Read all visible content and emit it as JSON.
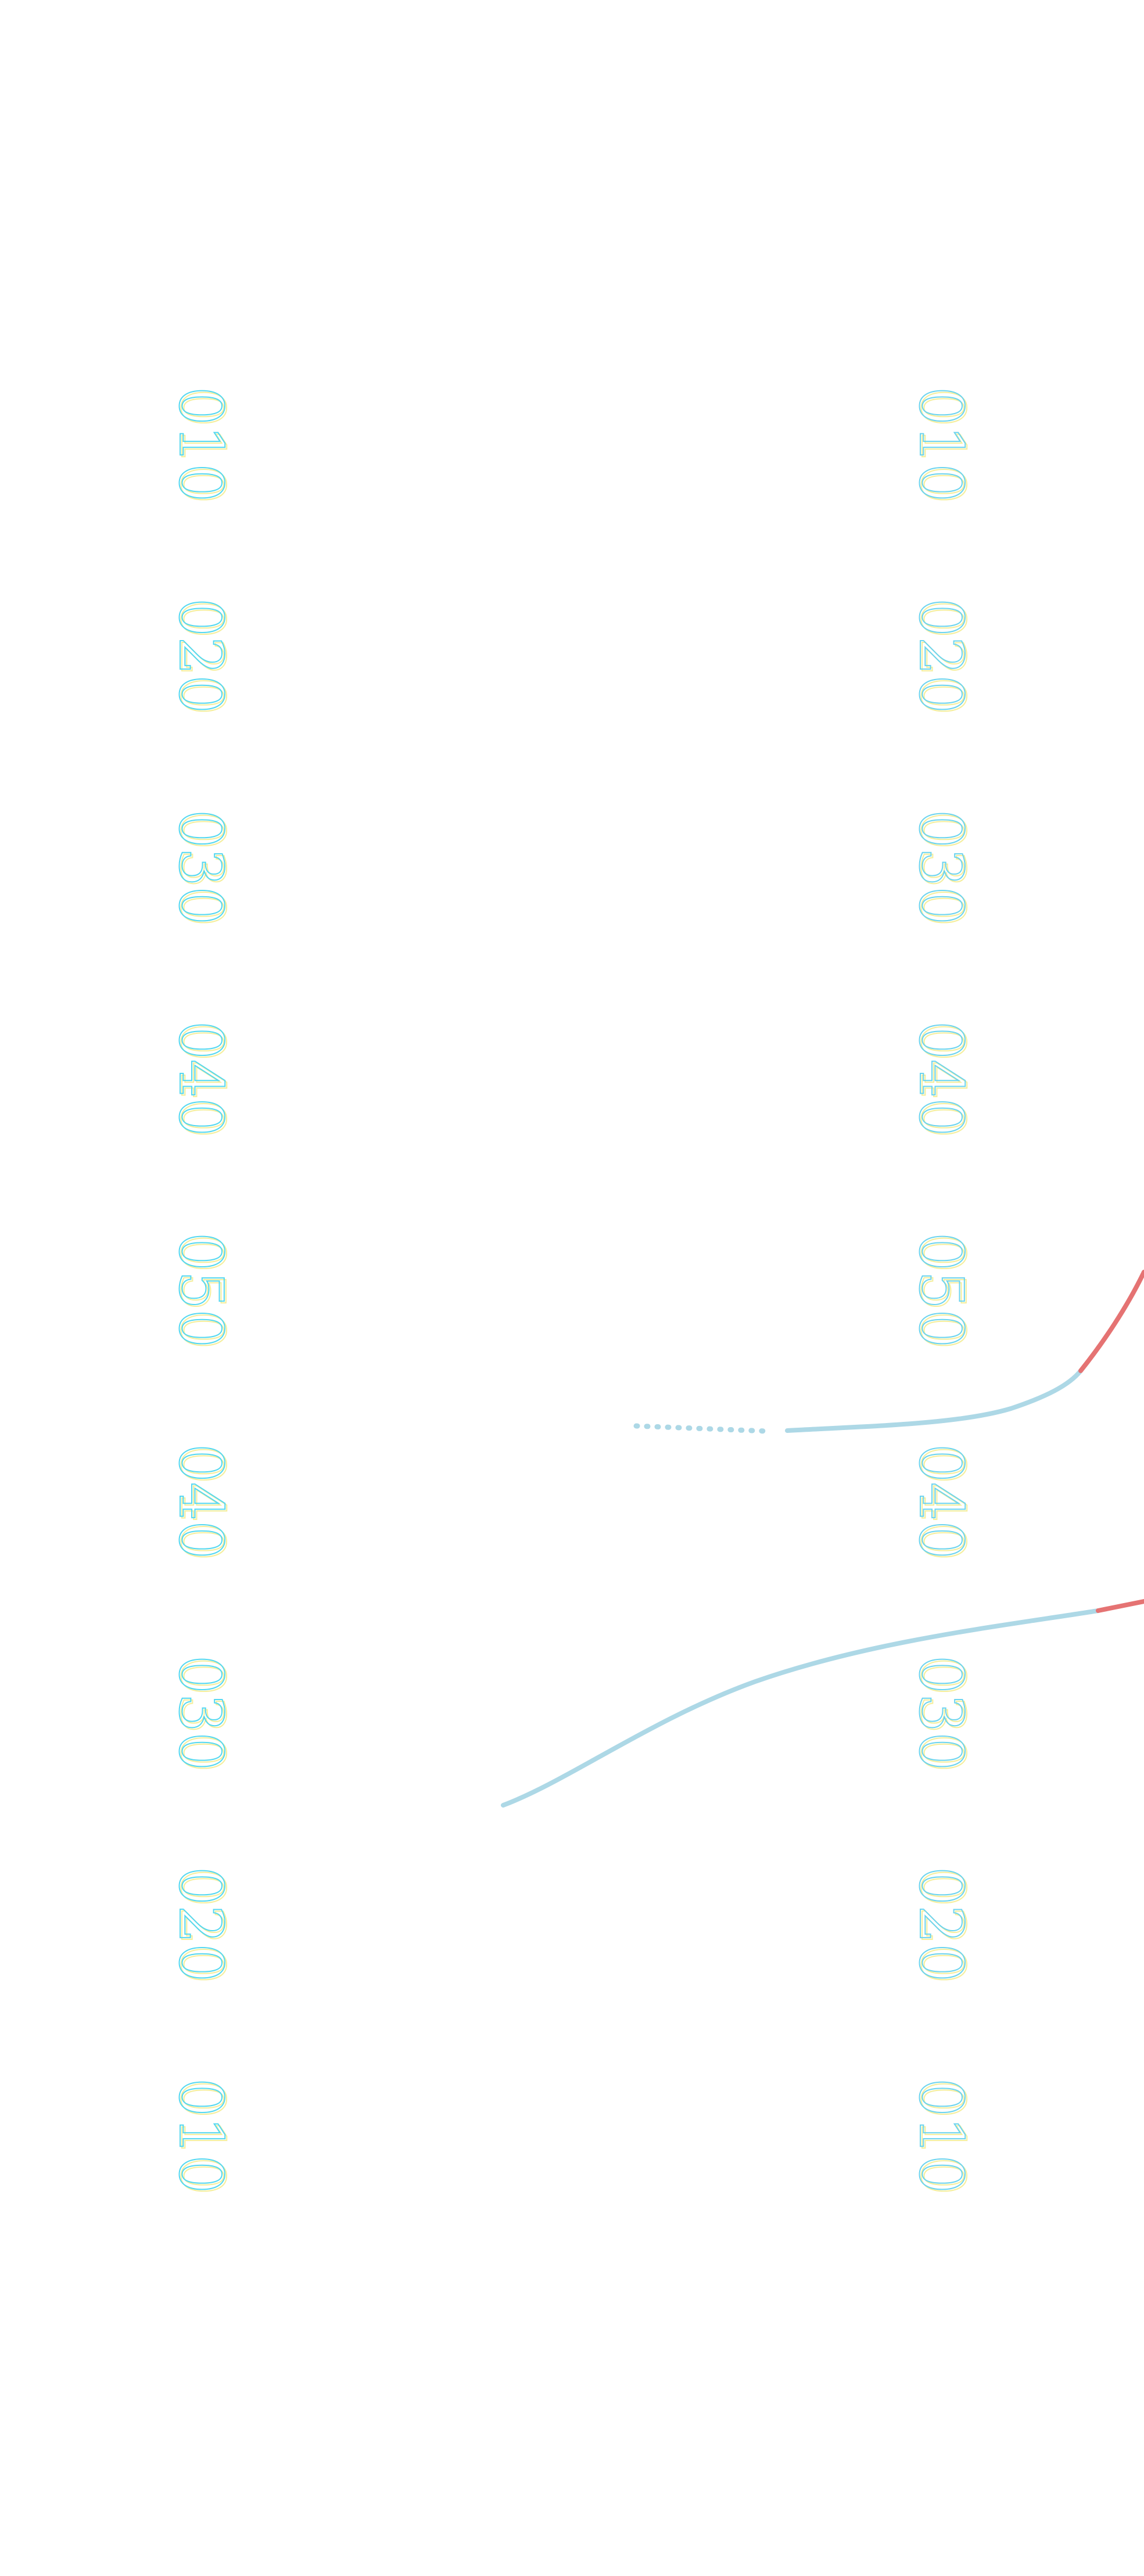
{
  "left_column": {
    "labels": [
      "010",
      "020",
      "030",
      "040",
      "050",
      "040",
      "030",
      "020",
      "010"
    ]
  },
  "right_column": {
    "labels": [
      "010",
      "020",
      "030",
      "040",
      "050",
      "040",
      "030",
      "020",
      "010"
    ]
  },
  "connectors": [
    {
      "name": "connector-upper",
      "style": "dotted",
      "color": "#add8e6"
    },
    {
      "name": "connector-upper",
      "style": "solid",
      "color": "#add8e6"
    },
    {
      "name": "connector-upper",
      "style": "solid",
      "color": "#e57373"
    },
    {
      "name": "connector-lower",
      "style": "solid",
      "color": "#add8e6"
    },
    {
      "name": "connector-lower",
      "style": "solid",
      "color": "#e57373"
    }
  ]
}
